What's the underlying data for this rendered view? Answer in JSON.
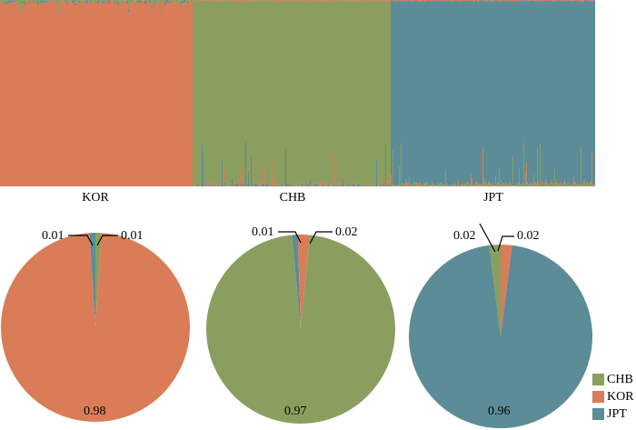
{
  "chart_data": [
    {
      "type": "bar",
      "subtype": "stacked-admixture",
      "categories": [
        "KOR",
        "CHB",
        "JPT"
      ],
      "components": [
        "KOR",
        "CHB",
        "JPT"
      ],
      "legend_position": "bottom-right"
    },
    {
      "type": "pie",
      "population": "KOR",
      "slices": [
        {
          "name": "KOR",
          "value": 0.98
        },
        {
          "name": "CHB",
          "value": 0.01
        },
        {
          "name": "JPT",
          "value": 0.01
        }
      ]
    },
    {
      "type": "pie",
      "population": "CHB",
      "slices": [
        {
          "name": "CHB",
          "value": 0.97
        },
        {
          "name": "KOR",
          "value": 0.02
        },
        {
          "name": "JPT",
          "value": 0.01
        }
      ]
    },
    {
      "type": "pie",
      "population": "JPT",
      "slices": [
        {
          "name": "JPT",
          "value": 0.96
        },
        {
          "name": "KOR",
          "value": 0.02
        },
        {
          "name": "CHB",
          "value": 0.02
        }
      ]
    }
  ],
  "labels": {
    "kor": "KOR",
    "chb": "CHB",
    "jpt": "JPT",
    "kor_main": "0.98",
    "kor_minor_left": "0.01",
    "kor_minor_right": "0.01",
    "chb_main": "0.97",
    "chb_minor_left": "0.01",
    "chb_minor_right": "0.02",
    "jpt_main": "0.96",
    "jpt_minor_left": "0.02",
    "jpt_minor_right": "0.02"
  },
  "legend": [
    {
      "name": "CHB",
      "color": "#8a9e5f"
    },
    {
      "name": "KOR",
      "color": "#d97c57"
    },
    {
      "name": "JPT",
      "color": "#5b8c97"
    }
  ],
  "colors": {
    "KOR": "#d97c57",
    "CHB": "#8a9e5f",
    "JPT": "#5b8c97"
  }
}
